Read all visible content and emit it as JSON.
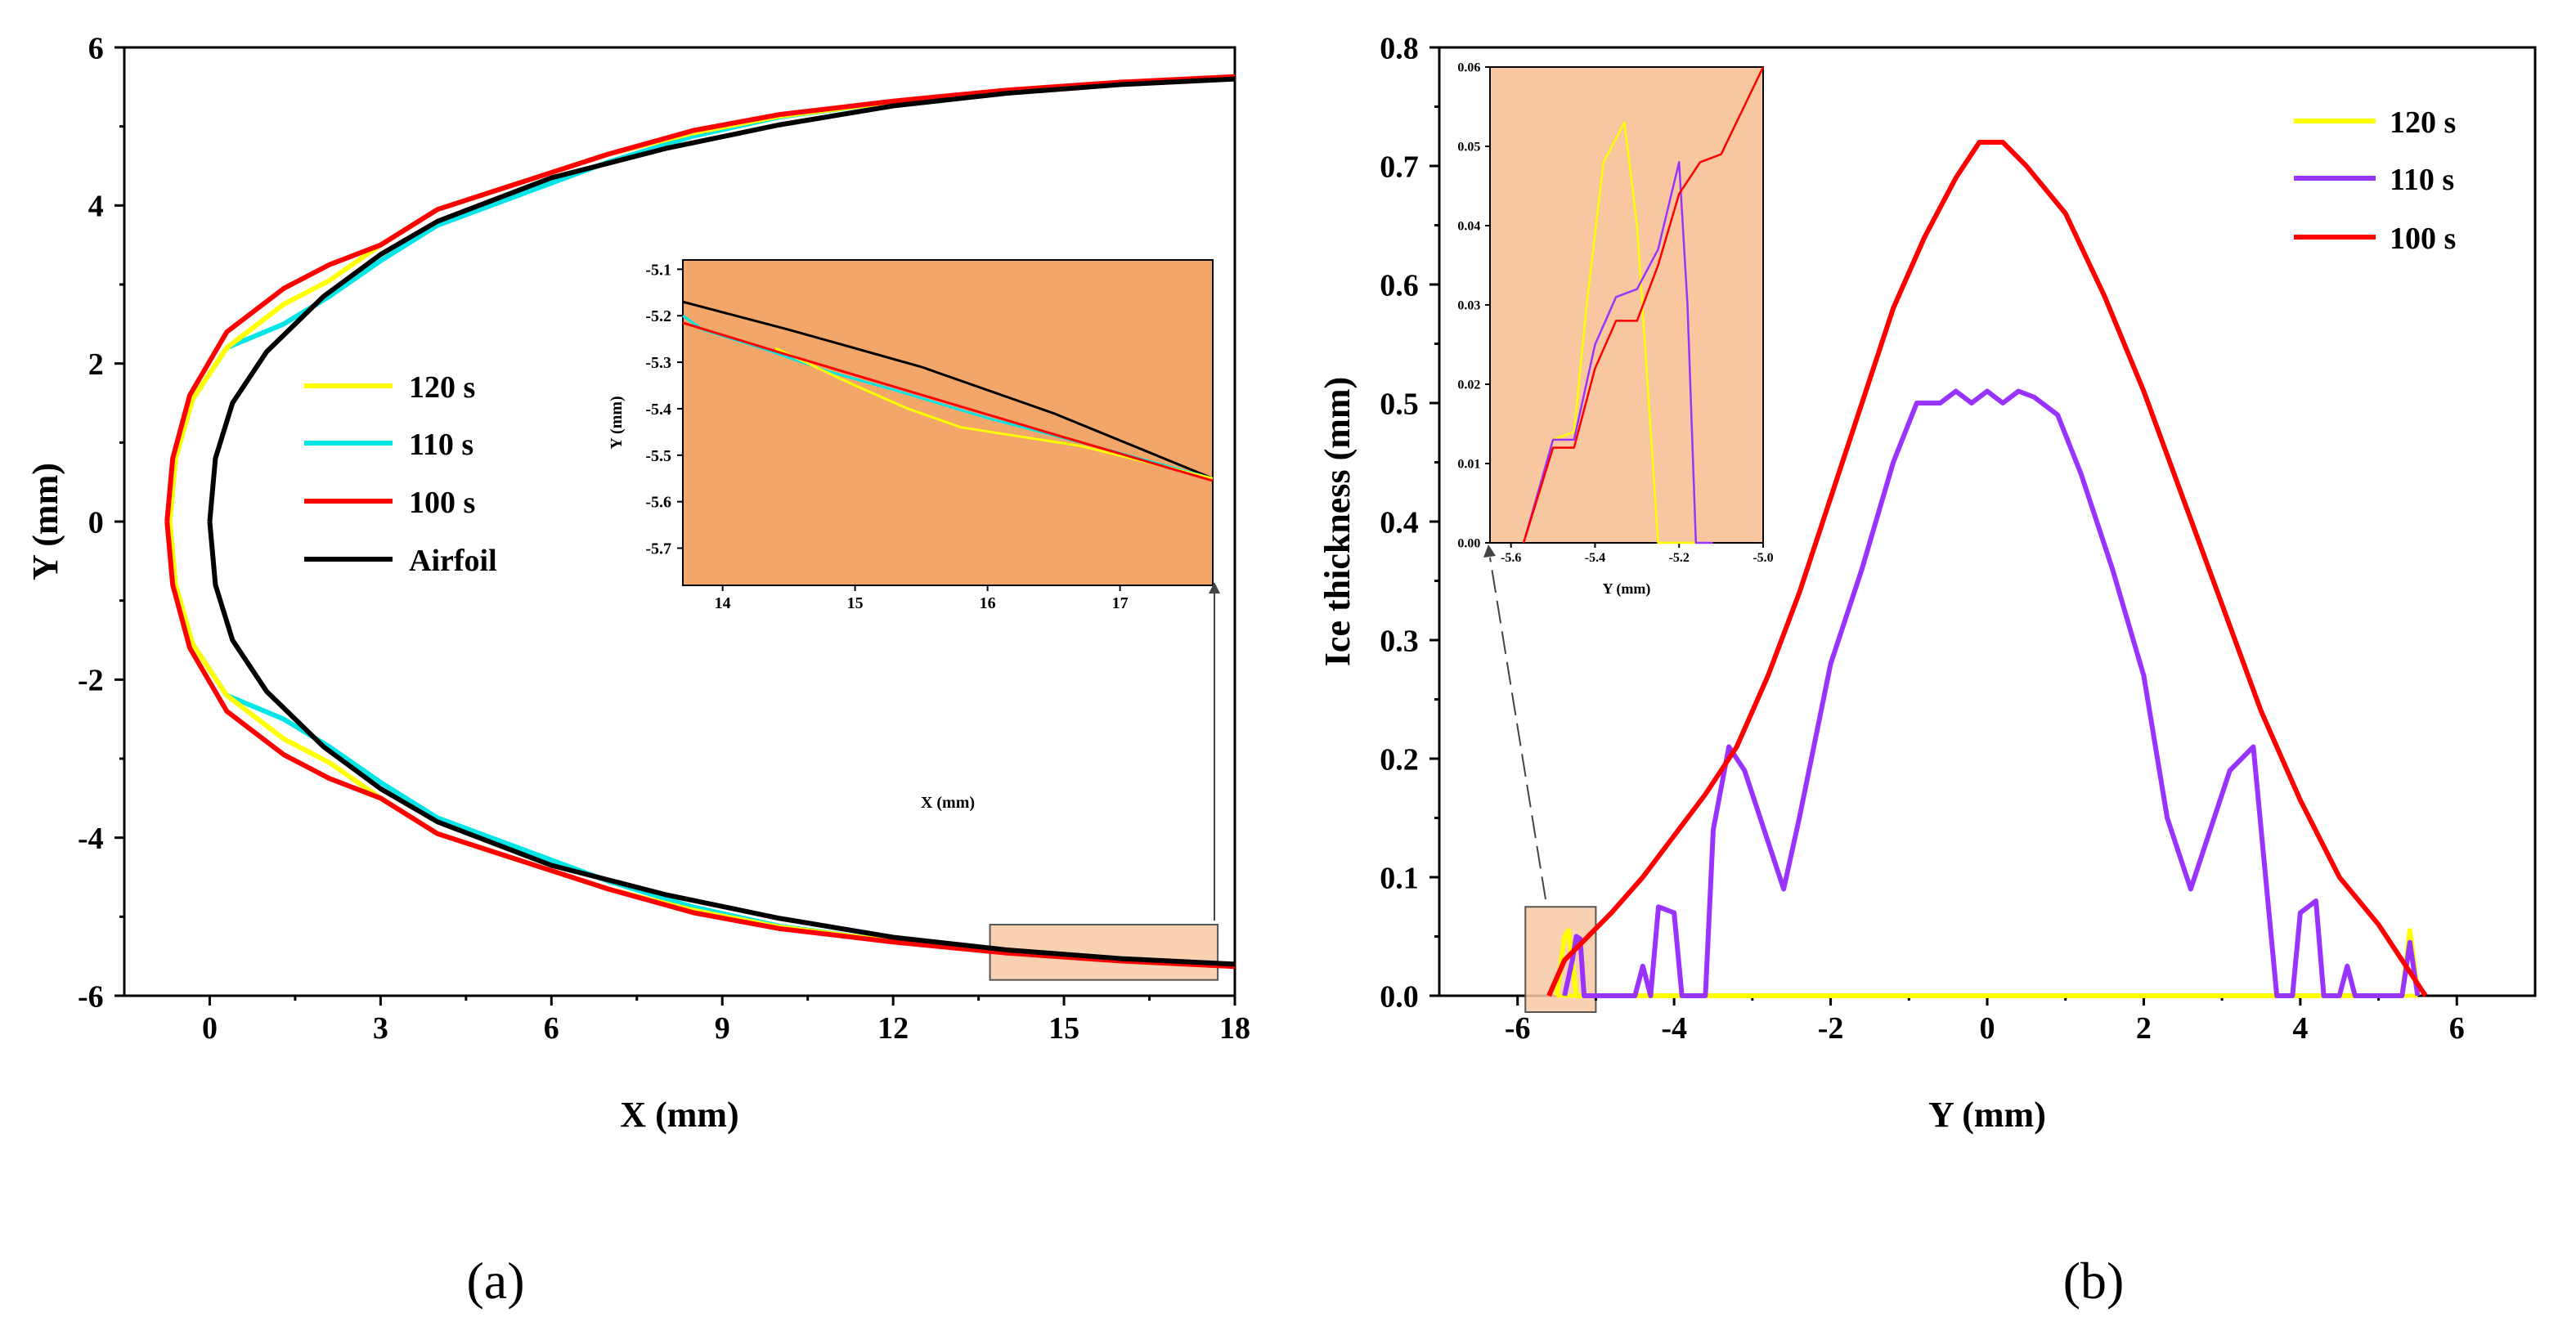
{
  "colors": {
    "yellow": "#ffff00",
    "cyan": "#00e5e5",
    "purple": "#9933ff",
    "red": "#ff0000",
    "black": "#000000",
    "inset_a_bg": "#f2a66a",
    "inset_b_bg": "#f8c7a0",
    "highlight_box": "#f7c9a4"
  },
  "panel_labels": {
    "a": "(a)",
    "b": "(b)"
  },
  "chart_data": [
    {
      "id": "a",
      "type": "line",
      "title": "",
      "xlabel": "X (mm)",
      "ylabel": "Y (mm)",
      "xlim": [
        -1.5,
        18
      ],
      "ylim": [
        -6,
        6
      ],
      "xticks": [
        0,
        3,
        6,
        9,
        12,
        15,
        18
      ],
      "xtick_labels": [
        "0",
        "3",
        "6",
        "9",
        "12",
        "15",
        "18"
      ],
      "yticks": [
        -6,
        -4,
        -2,
        0,
        2,
        4,
        6
      ],
      "ytick_labels": [
        "-6",
        "-4",
        "-2",
        "0",
        "2",
        "4",
        "6"
      ],
      "legend": {
        "placement": "center-left",
        "entries": [
          "120 s",
          "110 s",
          "100 s",
          "Airfoil"
        ]
      },
      "series": [
        {
          "name": "Airfoil",
          "color": "black",
          "points": [
            [
              0,
              0
            ],
            [
              0.1,
              0.8
            ],
            [
              0.4,
              1.5
            ],
            [
              1,
              2.15
            ],
            [
              2,
              2.85
            ],
            [
              3,
              3.38
            ],
            [
              4,
              3.8
            ],
            [
              6,
              4.35
            ],
            [
              8,
              4.72
            ],
            [
              10,
              5.02
            ],
            [
              12,
              5.26
            ],
            [
              14,
              5.42
            ],
            [
              16,
              5.53
            ],
            [
              18,
              5.6
            ]
          ]
        },
        {
          "name": "120 s",
          "color": "yellow",
          "points": [
            [
              -0.7,
              0
            ],
            [
              -0.6,
              0.8
            ],
            [
              -0.3,
              1.55
            ],
            [
              0.3,
              2.2
            ],
            [
              1.3,
              2.75
            ],
            [
              2.1,
              3.05
            ],
            [
              3,
              3.5
            ],
            [
              4,
              3.95
            ],
            [
              5.5,
              4.3
            ],
            [
              7,
              4.65
            ],
            [
              8.5,
              4.92
            ],
            [
              10,
              5.13
            ],
            [
              12,
              5.31
            ],
            [
              14,
              5.45
            ],
            [
              16,
              5.55
            ],
            [
              18,
              5.62
            ]
          ]
        },
        {
          "name": "110 s",
          "color": "cyan",
          "points": [
            [
              -0.7,
              0
            ],
            [
              -0.6,
              0.8
            ],
            [
              -0.3,
              1.55
            ],
            [
              0.3,
              2.2
            ],
            [
              1.3,
              2.5
            ],
            [
              2.1,
              2.85
            ],
            [
              3,
              3.3
            ],
            [
              4,
              3.75
            ],
            [
              5.5,
              4.15
            ],
            [
              7,
              4.55
            ],
            [
              8.5,
              4.88
            ],
            [
              10,
              5.12
            ],
            [
              12,
              5.31
            ],
            [
              14,
              5.45
            ],
            [
              16,
              5.55
            ],
            [
              18,
              5.62
            ]
          ]
        },
        {
          "name": "100 s",
          "color": "red",
          "points": [
            [
              -0.75,
              0
            ],
            [
              -0.65,
              0.8
            ],
            [
              -0.35,
              1.6
            ],
            [
              0.3,
              2.4
            ],
            [
              1.3,
              2.95
            ],
            [
              2.1,
              3.25
            ],
            [
              3,
              3.5
            ],
            [
              4,
              3.95
            ],
            [
              5.5,
              4.3
            ],
            [
              7,
              4.65
            ],
            [
              8.5,
              4.95
            ],
            [
              10,
              5.15
            ],
            [
              12,
              5.32
            ],
            [
              14,
              5.46
            ],
            [
              16,
              5.56
            ],
            [
              18,
              5.63
            ]
          ]
        }
      ],
      "inset": {
        "xlim": [
          13.7,
          17.7
        ],
        "ylim": [
          -5.78,
          -5.08
        ],
        "xticks": [
          14,
          15,
          16,
          17
        ],
        "xtick_labels": [
          "14",
          "15",
          "16",
          "17"
        ],
        "yticks": [
          -5.1,
          -5.2,
          -5.3,
          -5.4,
          -5.5,
          -5.6,
          -5.7
        ],
        "ytick_labels": [
          "-5.1",
          "-5.2",
          "-5.3",
          "-5.4",
          "-5.5",
          "-5.6",
          "-5.7"
        ],
        "xlabel": "X (mm)",
        "ylabel": "Y (mm)",
        "highlight": {
          "x": [
            13.7,
            17.7
          ],
          "y": [
            -5.8,
            -5.1
          ]
        },
        "series": [
          {
            "name": "Airfoil",
            "color": "black",
            "points": [
              [
                13.7,
                -5.17
              ],
              [
                14.5,
                -5.23
              ],
              [
                15.5,
                -5.31
              ],
              [
                16.5,
                -5.41
              ],
              [
                17.7,
                -5.55
              ]
            ]
          },
          {
            "name": "110 s",
            "color": "cyan",
            "points": [
              [
                13.7,
                -5.2
              ],
              [
                13.85,
                -5.23
              ],
              [
                14.3,
                -5.27
              ],
              [
                14.8,
                -5.32
              ],
              [
                15.3,
                -5.36
              ],
              [
                16,
                -5.42
              ],
              [
                16.8,
                -5.48
              ],
              [
                17.7,
                -5.55
              ]
            ]
          },
          {
            "name": "120 s",
            "color": "yellow",
            "points": [
              [
                14.4,
                -5.27
              ],
              [
                15,
                -5.35
              ],
              [
                15.4,
                -5.4
              ],
              [
                15.8,
                -5.44
              ],
              [
                16.7,
                -5.48
              ],
              [
                17.7,
                -5.55
              ]
            ]
          },
          {
            "name": "100 s",
            "color": "red",
            "points": [
              [
                13.7,
                -5.215
              ],
              [
                14.5,
                -5.285
              ],
              [
                15.5,
                -5.37
              ],
              [
                16.5,
                -5.455
              ],
              [
                17.7,
                -5.555
              ]
            ]
          }
        ]
      }
    },
    {
      "id": "b",
      "type": "line",
      "title": "",
      "xlabel": "Y (mm)",
      "ylabel": "Ice thickness (mm)",
      "xlim": [
        -7,
        7
      ],
      "ylim": [
        0,
        0.8
      ],
      "xticks": [
        -6,
        -4,
        -2,
        0,
        2,
        4,
        6
      ],
      "xtick_labels": [
        "-6",
        "-4",
        "-2",
        "0",
        "2",
        "4",
        "6"
      ],
      "yticks": [
        0,
        0.1,
        0.2,
        0.3,
        0.4,
        0.5,
        0.6,
        0.7,
        0.8
      ],
      "ytick_labels": [
        "0.0",
        "0.1",
        "0.2",
        "0.3",
        "0.4",
        "0.5",
        "0.6",
        "0.7",
        "0.8"
      ],
      "legend": {
        "placement": "top-right",
        "entries": [
          "120 s",
          "110 s",
          "100 s"
        ]
      },
      "series": [
        {
          "name": "100 s",
          "color": "red",
          "points": [
            [
              -5.6,
              0
            ],
            [
              -5.4,
              0.03
            ],
            [
              -5.1,
              0.05
            ],
            [
              -4.8,
              0.07
            ],
            [
              -4.4,
              0.1
            ],
            [
              -4,
              0.135
            ],
            [
              -3.6,
              0.17
            ],
            [
              -3.2,
              0.21
            ],
            [
              -2.8,
              0.27
            ],
            [
              -2.4,
              0.34
            ],
            [
              -2,
              0.42
            ],
            [
              -1.6,
              0.5
            ],
            [
              -1.2,
              0.58
            ],
            [
              -0.8,
              0.64
            ],
            [
              -0.4,
              0.69
            ],
            [
              -0.1,
              0.72
            ],
            [
              0.2,
              0.72
            ],
            [
              0.5,
              0.7
            ],
            [
              1,
              0.66
            ],
            [
              1.5,
              0.59
            ],
            [
              2,
              0.51
            ],
            [
              2.5,
              0.42
            ],
            [
              3,
              0.33
            ],
            [
              3.5,
              0.24
            ],
            [
              4,
              0.165
            ],
            [
              4.5,
              0.1
            ],
            [
              5,
              0.06
            ],
            [
              5.3,
              0.03
            ],
            [
              5.6,
              0
            ]
          ]
        },
        {
          "name": "110 s",
          "color": "purple",
          "points": [
            [
              -5.4,
              0
            ],
            [
              -5.3,
              0.03
            ],
            [
              -5.25,
              0.05
            ],
            [
              -5.2,
              0.048
            ],
            [
              -5.15,
              0
            ],
            [
              -4.5,
              0
            ],
            [
              -4.4,
              0.025
            ],
            [
              -4.3,
              0
            ],
            [
              -4.2,
              0.075
            ],
            [
              -4,
              0.07
            ],
            [
              -3.9,
              0
            ],
            [
              -3.6,
              0
            ],
            [
              -3.5,
              0.14
            ],
            [
              -3.3,
              0.21
            ],
            [
              -3.1,
              0.19
            ],
            [
              -2.8,
              0.13
            ],
            [
              -2.6,
              0.09
            ],
            [
              -2.4,
              0.15
            ],
            [
              -2,
              0.28
            ],
            [
              -1.6,
              0.36
            ],
            [
              -1.2,
              0.45
            ],
            [
              -0.9,
              0.5
            ],
            [
              -0.6,
              0.5
            ],
            [
              -0.4,
              0.51
            ],
            [
              -0.2,
              0.5
            ],
            [
              0,
              0.51
            ],
            [
              0.2,
              0.5
            ],
            [
              0.4,
              0.51
            ],
            [
              0.6,
              0.505
            ],
            [
              0.9,
              0.49
            ],
            [
              1.2,
              0.44
            ],
            [
              1.6,
              0.36
            ],
            [
              2,
              0.27
            ],
            [
              2.3,
              0.15
            ],
            [
              2.6,
              0.09
            ],
            [
              2.8,
              0.13
            ],
            [
              3.1,
              0.19
            ],
            [
              3.4,
              0.21
            ],
            [
              3.5,
              0.14
            ],
            [
              3.7,
              0
            ],
            [
              3.9,
              0
            ],
            [
              4,
              0.07
            ],
            [
              4.2,
              0.08
            ],
            [
              4.3,
              0
            ],
            [
              4.5,
              0
            ],
            [
              4.6,
              0.025
            ],
            [
              4.7,
              0
            ],
            [
              5.3,
              0
            ],
            [
              5.4,
              0.045
            ],
            [
              5.5,
              0
            ]
          ]
        },
        {
          "name": "120 s",
          "color": "yellow",
          "points": [
            [
              -5.5,
              0
            ],
            [
              -5.4,
              0.05
            ],
            [
              -5.35,
              0.055
            ],
            [
              -5.3,
              0.03
            ],
            [
              -5.25,
              0
            ],
            [
              5.3,
              0
            ],
            [
              5.4,
              0.055
            ],
            [
              5.45,
              0.03
            ],
            [
              5.5,
              0
            ]
          ]
        }
      ],
      "inset": {
        "xlim": [
          -5.65,
          -5.0
        ],
        "ylim": [
          0,
          0.06
        ],
        "xticks": [
          -5.6,
          -5.4,
          -5.2,
          -5.0
        ],
        "xtick_labels": [
          "-5.6",
          "-5.4",
          "-5.2",
          "-5.0"
        ],
        "yticks": [
          0,
          0.01,
          0.02,
          0.03,
          0.04,
          0.05,
          0.06
        ],
        "ytick_labels": [
          "0.00",
          "0.01",
          "0.02",
          "0.03",
          "0.04",
          "0.05",
          "0.06"
        ],
        "xlabel": "Y (mm)",
        "ylabel": "",
        "highlight": {
          "x": [
            -5.9,
            -5.0
          ],
          "y": [
            0,
            0.075
          ]
        },
        "series": [
          {
            "name": "120 s",
            "color": "yellow",
            "points": [
              [
                -5.57,
                0
              ],
              [
                -5.5,
                0.013
              ],
              [
                -5.45,
                0.014
              ],
              [
                -5.42,
                0.03
              ],
              [
                -5.38,
                0.048
              ],
              [
                -5.33,
                0.053
              ],
              [
                -5.3,
                0.04
              ],
              [
                -5.25,
                0
              ],
              [
                -5.15,
                0
              ]
            ]
          },
          {
            "name": "110 s",
            "color": "purple",
            "points": [
              [
                -5.57,
                0
              ],
              [
                -5.5,
                0.013
              ],
              [
                -5.45,
                0.013
              ],
              [
                -5.4,
                0.025
              ],
              [
                -5.35,
                0.031
              ],
              [
                -5.3,
                0.032
              ],
              [
                -5.25,
                0.037
              ],
              [
                -5.2,
                0.048
              ],
              [
                -5.18,
                0.03
              ],
              [
                -5.16,
                0.0
              ],
              [
                -5.12,
                0
              ]
            ]
          },
          {
            "name": "100 s",
            "color": "red",
            "points": [
              [
                -5.57,
                0
              ],
              [
                -5.5,
                0.012
              ],
              [
                -5.45,
                0.012
              ],
              [
                -5.4,
                0.022
              ],
              [
                -5.35,
                0.028
              ],
              [
                -5.3,
                0.028
              ],
              [
                -5.25,
                0.035
              ],
              [
                -5.2,
                0.044
              ],
              [
                -5.15,
                0.048
              ],
              [
                -5.1,
                0.049
              ],
              [
                -5.0,
                0.06
              ]
            ]
          }
        ]
      }
    }
  ]
}
